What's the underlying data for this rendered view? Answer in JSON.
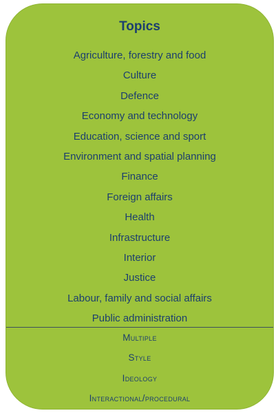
{
  "card": {
    "title": "Topics",
    "topics": [
      "Agriculture, forestry and food",
      "Culture",
      "Defence",
      "Economy and technology",
      "Education, science and sport",
      "Environment and spatial planning",
      "Finance",
      "Foreign affairs",
      "Health",
      "Infrastructure",
      "Interior",
      "Justice",
      "Labour, family and social affairs",
      "Public administration"
    ],
    "extras": [
      "Multiple",
      "Style",
      "Ideology",
      "Interactional/procedural"
    ]
  },
  "colors": {
    "card_background": "#9dc33c",
    "text": "#1c3f6e",
    "divider": "#3d4f5c"
  }
}
